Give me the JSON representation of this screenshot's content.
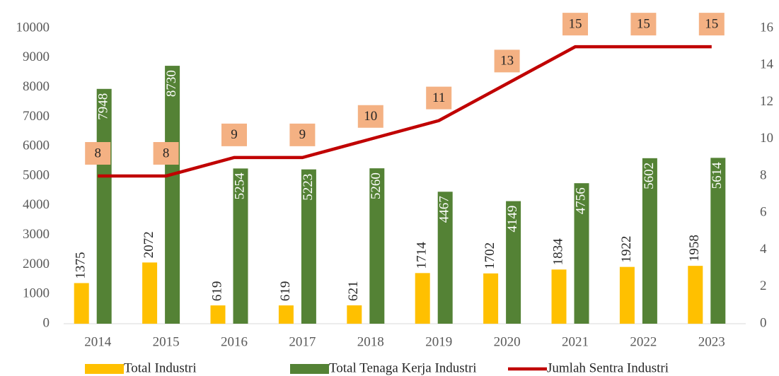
{
  "chart_data": {
    "type": "bar",
    "categories": [
      "2014",
      "2015",
      "2016",
      "2017",
      "2018",
      "2019",
      "2020",
      "2021",
      "2022",
      "2023"
    ],
    "series": [
      {
        "name": "Total Industri",
        "color": "#ffc000",
        "values": [
          1375,
          2072,
          619,
          619,
          621,
          1714,
          1702,
          1834,
          1922,
          1958
        ]
      },
      {
        "name": "Total Tenaga Kerja Industri",
        "color": "#548235",
        "values": [
          7948,
          8730,
          5254,
          5223,
          5260,
          4467,
          4149,
          4756,
          5602,
          5614
        ]
      },
      {
        "name": "Jumlah Sentra Industri",
        "color": "#c00000",
        "type": "line",
        "axis": "y2",
        "label_color": "#f4b183",
        "values": [
          8,
          8,
          9,
          9,
          10,
          11,
          13,
          15,
          15,
          15
        ]
      }
    ],
    "ylim": [
      0,
      10000
    ],
    "yticks": [
      0,
      1000,
      2000,
      3000,
      4000,
      5000,
      6000,
      7000,
      8000,
      9000,
      10000
    ],
    "y2lim": [
      0,
      16
    ],
    "y2ticks": [
      0,
      2,
      4,
      6,
      8,
      10,
      12,
      14,
      16
    ],
    "grid": false,
    "legend": "bottom"
  }
}
